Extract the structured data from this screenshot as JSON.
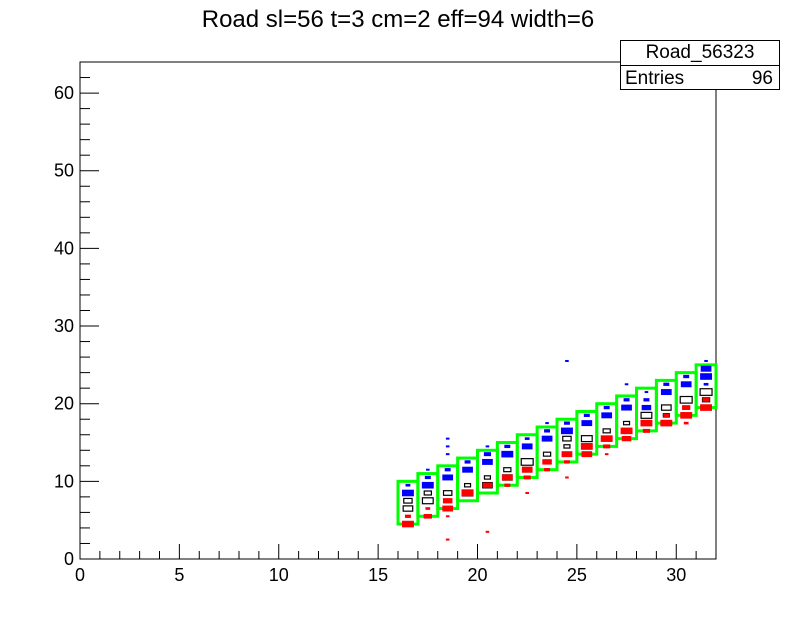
{
  "chart_data": {
    "type": "heatmap",
    "title": "Road sl=56 t=3 cm=2 eff=94 width=6",
    "xlim": [
      0,
      32
    ],
    "ylim": [
      0,
      64
    ],
    "x_ticks": [
      "0",
      "5",
      "10",
      "15",
      "20",
      "25",
      "30"
    ],
    "y_ticks": [
      "0",
      "10",
      "20",
      "30",
      "40",
      "50",
      "60"
    ],
    "stats": {
      "name": "Road_56323",
      "entries_label": "Entries",
      "entries": "96"
    },
    "colors": {
      "road": "#00ff00",
      "blue": "#0000ff",
      "red": "#ff0000",
      "black": "#000000"
    },
    "road_boxes": [
      [
        16,
        4.5,
        10
      ],
      [
        17,
        5.5,
        11
      ],
      [
        18,
        6.5,
        12
      ],
      [
        19,
        7.5,
        13
      ],
      [
        20,
        8.5,
        14
      ],
      [
        21,
        9.5,
        15
      ],
      [
        22,
        10.5,
        16
      ],
      [
        23,
        11.5,
        17
      ],
      [
        24,
        12.5,
        18
      ],
      [
        25,
        13.5,
        19
      ],
      [
        26,
        14.5,
        20
      ],
      [
        27,
        15.5,
        21
      ],
      [
        28,
        16.5,
        22
      ],
      [
        29,
        17.5,
        23
      ],
      [
        30,
        18.5,
        24
      ],
      [
        31,
        19.5,
        25
      ]
    ],
    "series": [
      {
        "name": "blue",
        "points": [
          [
            16,
            9.5,
            0.4
          ],
          [
            16,
            8.5,
            1.0
          ],
          [
            17,
            11.5,
            0.3
          ],
          [
            17,
            10.5,
            0.5
          ],
          [
            17,
            9.5,
            1.0
          ],
          [
            18,
            15.5,
            0.3
          ],
          [
            18,
            14.5,
            0.3
          ],
          [
            18,
            13.5,
            0.3
          ],
          [
            18,
            11.5,
            0.5
          ],
          [
            18,
            10.5,
            0.9
          ],
          [
            19,
            12.5,
            0.5
          ],
          [
            19,
            11.5,
            0.9
          ],
          [
            20,
            14.5,
            0.3
          ],
          [
            20,
            13.5,
            0.6
          ],
          [
            20,
            12.5,
            0.9
          ],
          [
            21,
            14.5,
            0.5
          ],
          [
            21,
            13.5,
            1.0
          ],
          [
            22,
            15.5,
            0.4
          ],
          [
            22,
            14.5,
            0.9
          ],
          [
            23,
            17.5,
            0.3
          ],
          [
            23,
            16.5,
            0.5
          ],
          [
            23,
            15.5,
            0.9
          ],
          [
            24,
            25.5,
            0.3
          ],
          [
            24,
            17.5,
            0.5
          ],
          [
            24,
            16.5,
            1.0
          ],
          [
            25,
            18.5,
            0.5
          ],
          [
            25,
            17.5,
            0.9
          ],
          [
            26,
            19.5,
            0.5
          ],
          [
            26,
            18.5,
            0.9
          ],
          [
            27,
            22.5,
            0.3
          ],
          [
            27,
            20.5,
            0.5
          ],
          [
            27,
            19.5,
            0.9
          ],
          [
            28,
            21.5,
            0.3
          ],
          [
            28,
            20.5,
            0.5
          ],
          [
            28,
            19.5,
            0.8
          ],
          [
            29,
            22.5,
            0.5
          ],
          [
            29,
            21.5,
            0.9
          ],
          [
            30,
            23.5,
            0.5
          ],
          [
            30,
            22.5,
            0.9
          ],
          [
            31,
            25.5,
            0.3
          ],
          [
            31,
            24.5,
            0.9
          ],
          [
            31,
            23.5,
            1.0
          ],
          [
            31,
            22.5,
            0.4
          ]
        ]
      },
      {
        "name": "black",
        "points": [
          [
            16,
            7.5,
            0.7
          ],
          [
            16,
            6.5,
            0.8
          ],
          [
            17,
            8.5,
            0.6
          ],
          [
            17,
            7.5,
            0.9
          ],
          [
            18,
            8.5,
            0.7
          ],
          [
            19,
            9.5,
            0.5
          ],
          [
            19,
            8.5,
            0.9
          ],
          [
            20,
            10.5,
            0.5
          ],
          [
            20,
            9.5,
            0.8
          ],
          [
            21,
            11.5,
            0.6
          ],
          [
            21,
            10.5,
            0.8
          ],
          [
            22,
            12.5,
            1.0
          ],
          [
            22,
            11.5,
            0.7
          ],
          [
            23,
            13.5,
            0.6
          ],
          [
            23,
            12.5,
            0.6
          ],
          [
            24,
            15.5,
            0.7
          ],
          [
            24,
            14.5,
            0.5
          ],
          [
            24,
            13.5,
            0.5
          ],
          [
            25,
            15.5,
            0.9
          ],
          [
            25,
            14.5,
            0.8
          ],
          [
            26,
            16.5,
            0.6
          ],
          [
            26,
            15.5,
            0.5
          ],
          [
            27,
            17.5,
            0.5
          ],
          [
            27,
            16.5,
            0.6
          ],
          [
            28,
            18.5,
            0.9
          ],
          [
            28,
            17.5,
            0.5
          ],
          [
            29,
            19.5,
            0.8
          ],
          [
            29,
            18.5,
            0.5
          ],
          [
            30,
            20.5,
            1.0
          ],
          [
            30,
            19.5,
            0.5
          ],
          [
            31,
            21.5,
            1.0
          ],
          [
            31,
            20.5,
            0.6
          ]
        ]
      },
      {
        "name": "red",
        "points": [
          [
            16,
            5.5,
            0.5
          ],
          [
            16,
            4.5,
            1.0
          ],
          [
            17,
            6.5,
            0.4
          ],
          [
            17,
            5.5,
            0.7
          ],
          [
            18,
            7.5,
            0.8
          ],
          [
            18,
            6.5,
            0.9
          ],
          [
            18,
            5.5,
            0.3
          ],
          [
            18,
            2.5,
            0.3
          ],
          [
            19,
            8.5,
            1.0
          ],
          [
            20,
            9.5,
            0.8
          ],
          [
            20,
            3.5,
            0.3
          ],
          [
            21,
            10.5,
            0.9
          ],
          [
            21,
            9.5,
            0.5
          ],
          [
            22,
            11.5,
            0.9
          ],
          [
            22,
            10.5,
            0.6
          ],
          [
            22,
            8.5,
            0.3
          ],
          [
            23,
            12.5,
            0.8
          ],
          [
            23,
            11.5,
            0.5
          ],
          [
            24,
            13.5,
            0.9
          ],
          [
            24,
            12.5,
            0.5
          ],
          [
            24,
            10.5,
            0.3
          ],
          [
            25,
            14.5,
            1.0
          ],
          [
            25,
            13.5,
            0.9
          ],
          [
            26,
            15.5,
            1.0
          ],
          [
            26,
            14.5,
            0.6
          ],
          [
            26,
            13.5,
            0.3
          ],
          [
            27,
            16.5,
            1.0
          ],
          [
            27,
            15.5,
            0.8
          ],
          [
            28,
            17.5,
            1.0
          ],
          [
            28,
            16.5,
            0.6
          ],
          [
            29,
            18.5,
            0.5
          ],
          [
            29,
            17.5,
            1.0
          ],
          [
            30,
            19.5,
            0.7
          ],
          [
            30,
            18.5,
            1.0
          ],
          [
            30,
            17.5,
            0.4
          ],
          [
            31,
            20.5,
            0.6
          ],
          [
            31,
            19.5,
            1.0
          ]
        ]
      }
    ]
  }
}
